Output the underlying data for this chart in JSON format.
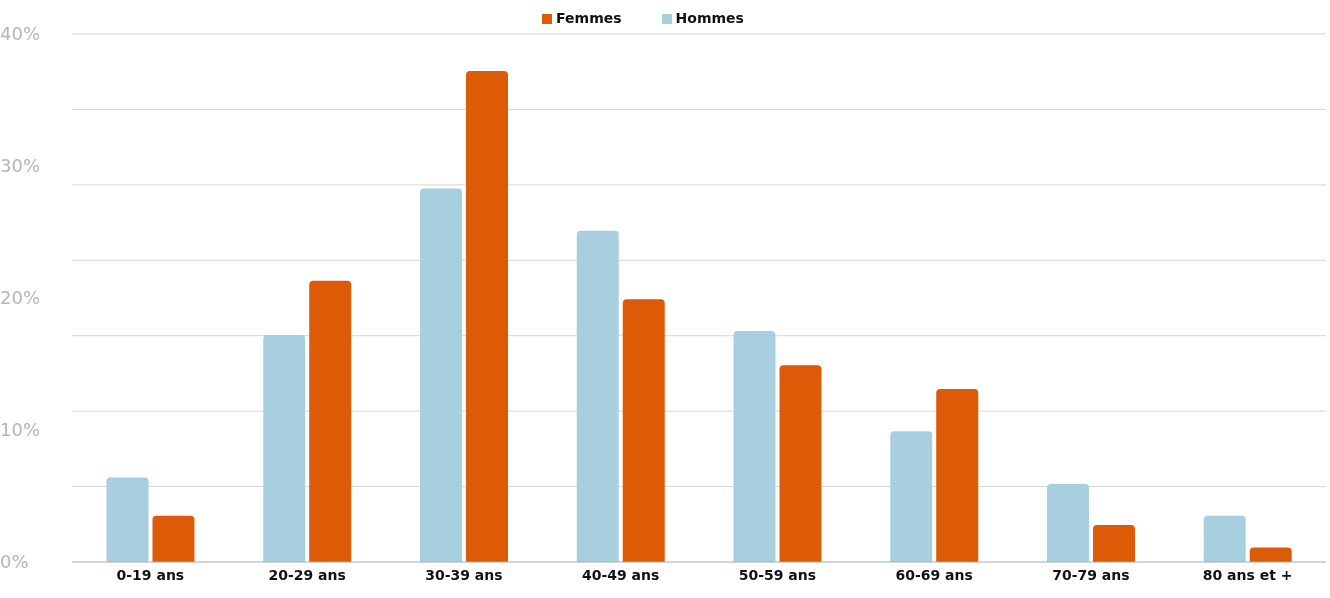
{
  "chart_data": {
    "type": "bar",
    "categories": [
      "0-19 ans",
      "20-29 ans",
      "30-39 ans",
      "40-49 ans",
      "50-59 ans",
      "60-69 ans",
      "70-79 ans",
      "80 ans et +"
    ],
    "series": [
      {
        "name": "Hommes",
        "color": "#a8cfe0",
        "values": [
          6.4,
          17.2,
          28.3,
          25.1,
          17.5,
          9.9,
          5.9,
          3.5
        ]
      },
      {
        "name": "Femmes",
        "color": "#dd5a07",
        "values": [
          3.5,
          21.3,
          37.2,
          19.9,
          14.9,
          13.1,
          2.8,
          1.1
        ]
      }
    ],
    "ylim": [
      0,
      40
    ],
    "yticks": [
      {
        "value": 0,
        "label": "0%"
      },
      {
        "value": 5.714,
        "label": null
      },
      {
        "value": 10,
        "label": "10%"
      },
      {
        "value": 11.429,
        "label": null
      },
      {
        "value": 17.143,
        "label": null
      },
      {
        "value": 20,
        "label": "20%"
      },
      {
        "value": 22.857,
        "label": null
      },
      {
        "value": 28.571,
        "label": null
      },
      {
        "value": 30,
        "label": "30%"
      },
      {
        "value": 34.286,
        "label": null
      },
      {
        "value": 40,
        "label": "40%"
      }
    ],
    "grid": "y",
    "legend": "top"
  }
}
